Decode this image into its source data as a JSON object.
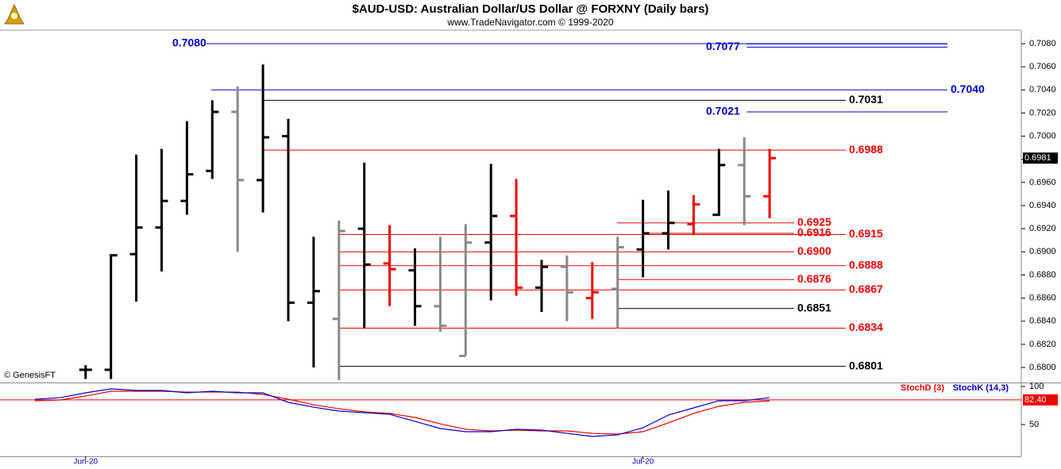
{
  "chart_data": [
    {
      "type": "ohlc",
      "title": "$AUD-USD:  Australian Dollar/US Dollar @ FORXNY  (Daily bars)",
      "subtitle": "www.TradeNavigator.com © 1999-2020",
      "watermark": "© GenesisFT",
      "categories": [
        null,
        null,
        "Jun-20",
        null,
        null,
        null,
        null,
        null,
        null,
        null,
        null,
        null,
        null,
        null,
        null,
        null,
        null,
        null,
        null,
        null,
        null,
        null,
        null,
        null,
        "Jul-20",
        null,
        null,
        null,
        null,
        null
      ],
      "open": [
        null,
        null,
        0.6798,
        0.6798,
        0.6898,
        0.6921,
        0.6944,
        0.697,
        0.7021,
        0.6962,
        0.7,
        0.6856,
        0.6842,
        0.692,
        0.689,
        0.6884,
        0.6853,
        0.681,
        0.6908,
        0.6931,
        0.6869,
        0.6887,
        0.686,
        0.6868,
        0.6902,
        0.6916,
        0.6924,
        0.6932,
        0.6975,
        0.6948
      ],
      "high": [
        null,
        null,
        0.6802,
        0.6898,
        0.6984,
        0.6989,
        0.7013,
        0.7031,
        0.7043,
        0.7062,
        0.7015,
        0.6913,
        0.6927,
        0.6977,
        0.6923,
        0.6903,
        0.6913,
        0.6924,
        0.6976,
        0.6963,
        0.6893,
        0.6897,
        0.6891,
        0.6913,
        0.6945,
        0.6953,
        0.6949,
        0.6989,
        0.6999,
        0.6989
      ],
      "low": [
        null,
        null,
        0.679,
        0.679,
        0.6857,
        0.6883,
        0.6932,
        0.6963,
        0.69,
        0.6934,
        0.684,
        0.68,
        0.6789,
        0.6834,
        0.6853,
        0.6836,
        0.6831,
        0.681,
        0.6858,
        0.6862,
        0.6848,
        0.684,
        0.6842,
        0.6834,
        0.6878,
        0.6902,
        0.6915,
        0.6931,
        0.6923,
        0.6929
      ],
      "close": [
        null,
        null,
        0.6798,
        0.6897,
        0.6921,
        0.6944,
        0.6967,
        0.7021,
        0.6962,
        0.6999,
        0.6856,
        0.6866,
        0.6918,
        0.6889,
        0.6885,
        0.6853,
        0.6836,
        0.6908,
        0.6931,
        0.6869,
        0.6887,
        0.6865,
        0.6865,
        0.6904,
        0.6916,
        0.6925,
        0.6941,
        0.6975,
        0.6948,
        0.6981
      ],
      "bar_colors": [
        null,
        null,
        "#000000",
        "#000000",
        "#000000",
        "#000000",
        "#000000",
        "#000000",
        "#888888",
        "#000000",
        "#000000",
        "#000000",
        "#888888",
        "#000000",
        "#ee0000",
        "#000000",
        "#888888",
        "#888888",
        "#000000",
        "#ee0000",
        "#000000",
        "#888888",
        "#ee0000",
        "#888888",
        "#000000",
        "#000000",
        "#ee0000",
        "#000000",
        "#888888",
        "#ee0000"
      ],
      "ylim": [
        0.6787,
        0.7092
      ],
      "yticks": [
        {
          "value": 0.68,
          "label": "0.6800"
        },
        {
          "value": 0.682,
          "label": "0.6820"
        },
        {
          "value": 0.684,
          "label": "0.6840"
        },
        {
          "value": 0.686,
          "label": "0.6860"
        },
        {
          "value": 0.688,
          "label": "0.6880"
        },
        {
          "value": 0.69,
          "label": "0.6900"
        },
        {
          "value": 0.692,
          "label": "0.6920"
        },
        {
          "value": 0.694,
          "label": "0.6940"
        },
        {
          "value": 0.696,
          "label": "0.6960"
        },
        {
          "value": 0.698,
          "label": "0.6980"
        },
        {
          "value": 0.7,
          "label": "0.7000"
        },
        {
          "value": 0.702,
          "label": "0.7020"
        },
        {
          "value": 0.704,
          "label": "0.7040"
        },
        {
          "value": 0.706,
          "label": "0.7060"
        },
        {
          "value": 0.708,
          "label": "0.7080"
        }
      ],
      "last_price": 0.6981,
      "levels": [
        {
          "value": 0.708,
          "label": "0.7080",
          "color": "#0000cc"
        },
        {
          "value": 0.7077,
          "color": "#0000cc"
        },
        {
          "value": 0.704,
          "label": "0.7040",
          "color": "#0000cc"
        },
        {
          "value": 0.7031,
          "color": "#000000"
        },
        {
          "value": 0.7021,
          "color": "#0000cc"
        },
        {
          "value": 0.6988,
          "color": "#ee0000"
        },
        {
          "value": 0.6925,
          "color": "#ee0000"
        },
        {
          "value": 0.6916,
          "color": "#ee0000"
        },
        {
          "value": 0.6915,
          "color": "#ee0000"
        },
        {
          "value": 0.69,
          "label": "0.6900",
          "color": "#ee0000"
        },
        {
          "value": 0.6888,
          "color": "#ee0000"
        },
        {
          "value": 0.6876,
          "color": "#ee0000"
        },
        {
          "value": 0.6867,
          "color": "#ee0000"
        },
        {
          "value": 0.6851,
          "color": "#000000"
        },
        {
          "value": 0.6834,
          "color": "#ee0000"
        },
        {
          "value": 0.6801,
          "color": "#000000"
        }
      ]
    },
    {
      "type": "line",
      "series": [
        {
          "name": "StochD (3)",
          "color": "#ee0000",
          "values": [
            81.3,
            82.3,
            87.5,
            93.8,
            93.8,
            93.8,
            92.7,
            92.7,
            92.7,
            89.6,
            83.3,
            76.0,
            70.8,
            66.7,
            64.6,
            59.4,
            51.0,
            43.8,
            41.7,
            42.7,
            41.7,
            41.7,
            38.5,
            37.5,
            40.6,
            52.1,
            64.6,
            74.0,
            79.2,
            81.3
          ]
        },
        {
          "name": "StochK (14,3)",
          "color": "#0000cc",
          "values": [
            83.3,
            85.4,
            91.7,
            96.9,
            94.8,
            94.8,
            91.7,
            93.8,
            91.7,
            91.7,
            79.2,
            72.9,
            67.7,
            65.6,
            63.5,
            54.2,
            44.8,
            40.6,
            40.6,
            43.8,
            42.7,
            38.5,
            34.4,
            36.5,
            45.8,
            62.5,
            71.9,
            81.3,
            81.3,
            85.4
          ]
        }
      ],
      "reference": {
        "value": 82.4,
        "label": "82.40"
      },
      "ylim": [
        8,
        104
      ],
      "yticks": [
        100,
        50
      ]
    }
  ]
}
